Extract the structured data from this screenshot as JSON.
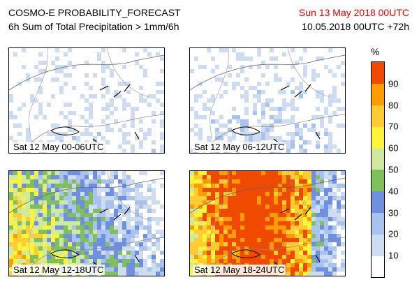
{
  "header": {
    "title": "COSMO-E PROBABILITY_FORECAST",
    "subtitle": "6h Sum of Total Precipitation > 1mm/6h",
    "valid_time": "Sun 13 May 2018 00UTC",
    "valid_time_color": "#e00000",
    "run_info": "10.05.2018 00UTC +72h"
  },
  "panels": [
    {
      "label": "Sat 12 May 00-06UTC",
      "intensity": 0.12
    },
    {
      "label": "Sat 12 May 06-12UTC",
      "intensity": 0.2
    },
    {
      "label": "Sat 12 May 12-18UTC",
      "intensity": 0.55
    },
    {
      "label": "Sat 12 May 18-24UTC",
      "intensity": 0.85
    }
  ],
  "colorbar": {
    "unit": "%",
    "ticks": [
      "90",
      "80",
      "70",
      "60",
      "50",
      "40",
      "30",
      "20",
      "10"
    ],
    "colors": [
      "#ffffff",
      "#cddcf0",
      "#a9c3ee",
      "#6f8fe0",
      "#7fc05a",
      "#cfe9a0",
      "#fff33b",
      "#ffcc33",
      "#ff9c00",
      "#f04a00"
    ]
  }
}
